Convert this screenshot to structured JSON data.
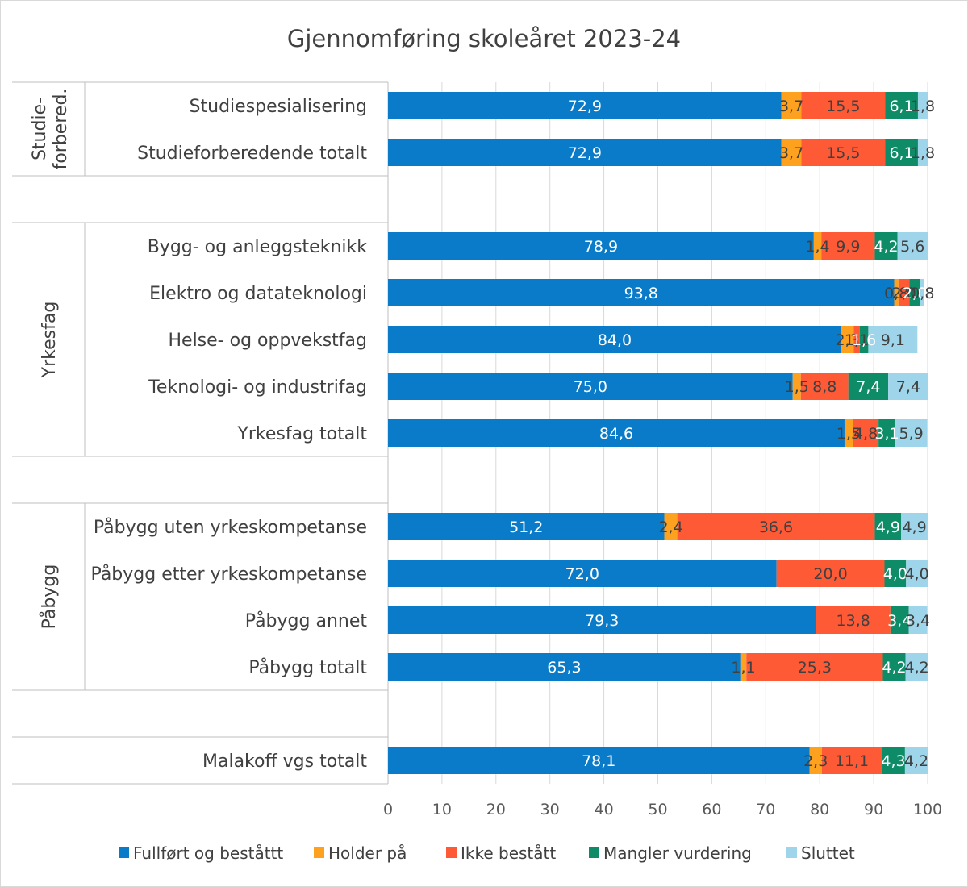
{
  "colors": {
    "fullfort": "#0A7BC8",
    "holder": "#FDA11E",
    "ikke": "#FF5A36",
    "mangler": "#0E8C67",
    "sluttet": "#9FD5EA",
    "border": "#d9d9d9"
  },
  "chart_data": {
    "type": "bar",
    "orientation": "horizontal",
    "stacked": true,
    "title": "Gjennomføring skoleåret 2023-24",
    "xlim": [
      0,
      100
    ],
    "x_ticks": [
      0,
      10,
      20,
      30,
      40,
      50,
      60,
      70,
      80,
      90,
      100
    ],
    "grid": true,
    "legend_position": "bottom",
    "series": [
      {
        "name": "Fullført og beståttt",
        "color_key": "fullfort",
        "label_color": "#ffffff"
      },
      {
        "name": "Holder på",
        "color_key": "holder",
        "label_color": "#404040"
      },
      {
        "name": "Ikke bestått",
        "color_key": "ikke",
        "label_color": "#404040"
      },
      {
        "name": "Mangler vurdering",
        "color_key": "mangler",
        "label_color": "#ffffff"
      },
      {
        "name": "Sluttet",
        "color_key": "sluttet",
        "label_color": "#404040"
      }
    ],
    "groups": [
      {
        "name": "Studie-\nforbered.",
        "rows": [
          {
            "category": "Studiespesialisering",
            "values": [
              72.9,
              3.7,
              15.5,
              6.1,
              1.8
            ],
            "labels": [
              "72,9",
              "3,7",
              "15,5",
              "6,1",
              "1,8"
            ]
          },
          {
            "category": "Studieforberedende totalt",
            "values": [
              72.9,
              3.7,
              15.5,
              6.1,
              1.8
            ],
            "labels": [
              "72,9",
              "3,7",
              "15,5",
              "6,1",
              "1,8"
            ]
          }
        ]
      },
      {
        "name": "Yrkesfag",
        "rows": [
          {
            "category": "Bygg- og anleggsteknikk",
            "values": [
              78.9,
              1.4,
              9.9,
              4.2,
              5.6
            ],
            "labels": [
              "78,9",
              "1,4",
              "9,9",
              "4,2",
              "5,6"
            ]
          },
          {
            "category": "Elektro og datateknologi",
            "values": [
              93.8,
              0.8,
              2.0,
              2.0,
              0.8
            ],
            "labels": [
              "93,8",
              "0,8",
              "2,0",
              "2,0",
              "0,8"
            ]
          },
          {
            "category": "Helse- og oppvekstfag",
            "values": [
              84.0,
              2.3,
              1.1,
              1.6,
              9.1
            ],
            "labels": [
              "84,0",
              "2,3",
              "1,1",
              "1,6",
              "9,1"
            ]
          },
          {
            "category": "Teknologi- og industrifag",
            "values": [
              75.0,
              1.5,
              8.8,
              7.4,
              7.4
            ],
            "labels": [
              "75,0",
              "1,5",
              "8,8",
              "7,4",
              "7,4"
            ]
          },
          {
            "category": "Yrkesfag totalt",
            "values": [
              84.6,
              1.5,
              4.8,
              3.1,
              5.9
            ],
            "labels": [
              "84,6",
              "1,5",
              "4,8",
              "3,1",
              "5,9"
            ]
          }
        ]
      },
      {
        "name": "Påbygg",
        "rows": [
          {
            "category": "Påbygg uten yrkeskompetanse",
            "values": [
              51.2,
              2.4,
              36.6,
              4.9,
              4.9
            ],
            "labels": [
              "51,2",
              "2,4",
              "36,6",
              "4,9",
              "4,9"
            ]
          },
          {
            "category": "Påbygg etter yrkeskompetanse",
            "values": [
              72.0,
              0,
              20.0,
              4.0,
              4.0
            ],
            "labels": [
              "72,0",
              "",
              "20,0",
              "4,0",
              "4,0"
            ]
          },
          {
            "category": "Påbygg annet",
            "values": [
              79.3,
              0,
              13.8,
              3.4,
              3.4
            ],
            "labels": [
              "79,3",
              "",
              "13,8",
              "3,4",
              "3,4"
            ]
          },
          {
            "category": "Påbygg totalt",
            "values": [
              65.3,
              1.1,
              25.3,
              4.2,
              4.2
            ],
            "labels": [
              "65,3",
              "1,1",
              "25,3",
              "4,2",
              "4,2"
            ]
          }
        ]
      },
      {
        "name": "",
        "rows": [
          {
            "category": "Malakoff vgs totalt",
            "values": [
              78.1,
              2.3,
              11.1,
              4.3,
              4.2
            ],
            "labels": [
              "78,1",
              "2,3",
              "11,1",
              "4,3",
              "4,2"
            ]
          }
        ]
      }
    ]
  }
}
